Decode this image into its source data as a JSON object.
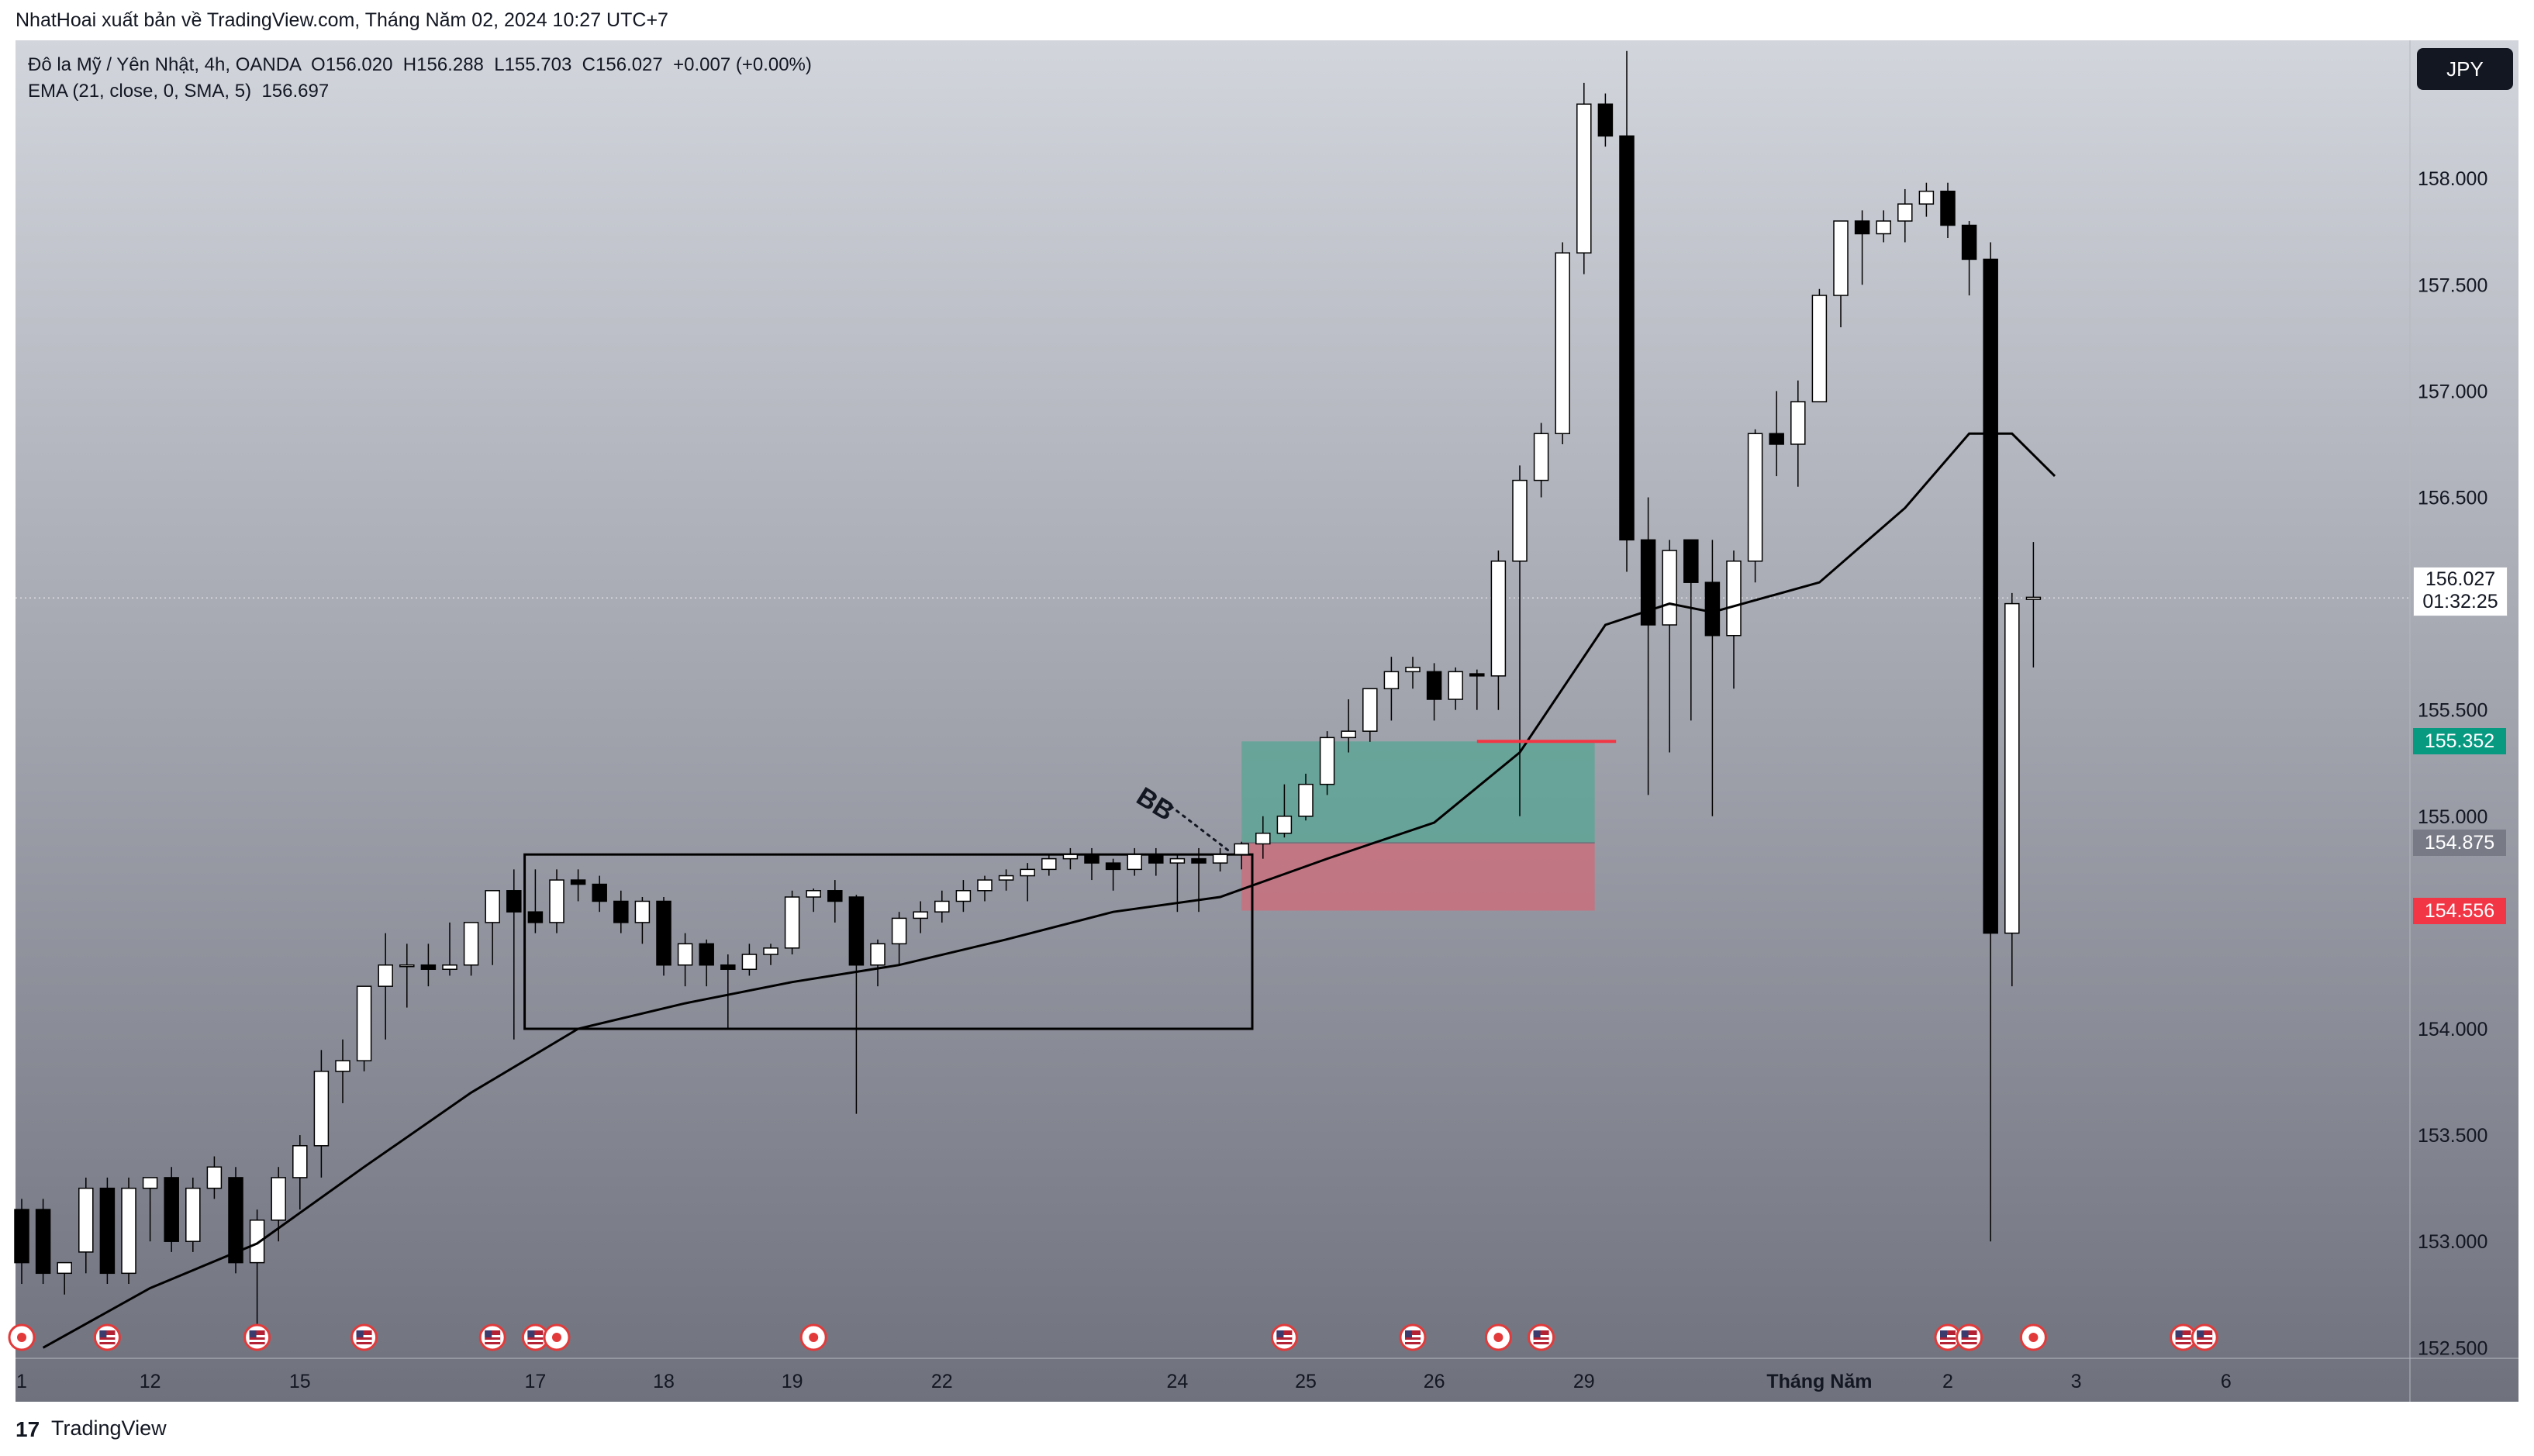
{
  "header": {
    "published_by": "NhatHoai xuất bản về TradingView.com, Tháng Năm 02, 2024 10:27 UTC+7"
  },
  "legend": {
    "symbol_line": "Đô la Mỹ / Yên Nhật, 4h, OANDA  O156.020  H156.288  L155.703  C156.027  +0.007 (+0.00%)",
    "indicator_line": "EMA (21, close, 0, SMA, 5)  156.697"
  },
  "currency_button": "JPY",
  "footer": {
    "brand": "TradingView",
    "brand_mark": "17"
  },
  "colors": {
    "bg_top": "#d2d5dc",
    "bg_bottom": "#6f717d",
    "bull_body": "#ffffff",
    "bear_body": "#000000",
    "ema": "#000000",
    "target_zone": "#5fa596",
    "stop_zone": "#c9707e",
    "last_price_tag": "#2a2e39",
    "target_tag": "#089981",
    "stop_tag": "#f23645",
    "resistance_line": "#f23645"
  },
  "price_labels": {
    "last_price": "156.027",
    "countdown": "01:32:25",
    "target": "155.352",
    "entry": "154.875",
    "stop": "154.556"
  },
  "annotation": {
    "text": "BB"
  },
  "chart_data": {
    "type": "candlestick",
    "symbol": "Đô la Mỹ / Yên Nhật",
    "interval": "4h",
    "source": "OANDA",
    "ohlc": {
      "open": 156.02,
      "high": 156.288,
      "low": 155.703,
      "close": 156.027,
      "change": 0.007,
      "change_pct": 0.0
    },
    "ylim": [
      152.45,
      158.65
    ],
    "y_ticks": [
      {
        "v": 158.0,
        "label": "158.000"
      },
      {
        "v": 157.5,
        "label": "157.500"
      },
      {
        "v": 157.0,
        "label": "157.000"
      },
      {
        "v": 156.5,
        "label": "156.500"
      },
      {
        "v": 155.5,
        "label": "155.500"
      },
      {
        "v": 155.0,
        "label": "155.000"
      },
      {
        "v": 154.0,
        "label": "154.000"
      },
      {
        "v": 153.5,
        "label": "153.500"
      },
      {
        "v": 153.0,
        "label": "153.000"
      },
      {
        "v": 152.5,
        "label": "152.500"
      }
    ],
    "x_ticks": [
      {
        "i": 0,
        "label": "1"
      },
      {
        "i": 6,
        "label": "12"
      },
      {
        "i": 13,
        "label": "15"
      },
      {
        "i": 24,
        "label": "17"
      },
      {
        "i": 30,
        "label": "18"
      },
      {
        "i": 36,
        "label": "19"
      },
      {
        "i": 43,
        "label": "22"
      },
      {
        "i": 54,
        "label": "24"
      },
      {
        "i": 60,
        "label": "25"
      },
      {
        "i": 66,
        "label": "26"
      },
      {
        "i": 73,
        "label": "29"
      },
      {
        "i": 84,
        "label": "Tháng Năm",
        "bold": true
      },
      {
        "i": 90,
        "label": "2"
      },
      {
        "i": 96,
        "label": "3"
      },
      {
        "i": 103,
        "label": "6"
      }
    ],
    "candles": [
      [
        153.15,
        153.2,
        152.8,
        152.9
      ],
      [
        153.15,
        153.2,
        152.8,
        152.85
      ],
      [
        152.85,
        152.9,
        152.75,
        152.9
      ],
      [
        152.95,
        153.3,
        152.85,
        153.25
      ],
      [
        153.25,
        153.3,
        152.8,
        152.85
      ],
      [
        152.85,
        153.3,
        152.8,
        153.25
      ],
      [
        153.25,
        153.3,
        153.0,
        153.3
      ],
      [
        153.3,
        153.35,
        152.95,
        153.0
      ],
      [
        153.0,
        153.3,
        152.95,
        153.25
      ],
      [
        153.25,
        153.4,
        153.2,
        153.35
      ],
      [
        153.3,
        153.35,
        152.85,
        152.9
      ],
      [
        152.9,
        153.15,
        152.6,
        153.1
      ],
      [
        153.1,
        153.35,
        153.0,
        153.3
      ],
      [
        153.3,
        153.5,
        153.15,
        153.45
      ],
      [
        153.45,
        153.9,
        153.3,
        153.8
      ],
      [
        153.8,
        153.95,
        153.65,
        153.85
      ],
      [
        153.85,
        154.2,
        153.8,
        154.2
      ],
      [
        154.2,
        154.45,
        153.95,
        154.3
      ],
      [
        154.3,
        154.4,
        154.1,
        154.3
      ],
      [
        154.3,
        154.4,
        154.2,
        154.28
      ],
      [
        154.28,
        154.5,
        154.25,
        154.3
      ],
      [
        154.3,
        154.5,
        154.25,
        154.5
      ],
      [
        154.5,
        154.65,
        154.3,
        154.65
      ],
      [
        154.65,
        154.75,
        153.95,
        154.55
      ],
      [
        154.55,
        154.75,
        154.45,
        154.5
      ],
      [
        154.5,
        154.75,
        154.45,
        154.7
      ],
      [
        154.7,
        154.75,
        154.6,
        154.68
      ],
      [
        154.68,
        154.72,
        154.55,
        154.6
      ],
      [
        154.6,
        154.65,
        154.45,
        154.5
      ],
      [
        154.5,
        154.62,
        154.4,
        154.6
      ],
      [
        154.6,
        154.62,
        154.25,
        154.3
      ],
      [
        154.3,
        154.45,
        154.2,
        154.4
      ],
      [
        154.4,
        154.42,
        154.2,
        154.3
      ],
      [
        154.3,
        154.35,
        154.0,
        154.28
      ],
      [
        154.28,
        154.4,
        154.25,
        154.35
      ],
      [
        154.35,
        154.4,
        154.3,
        154.38
      ],
      [
        154.38,
        154.65,
        154.35,
        154.62
      ],
      [
        154.62,
        154.66,
        154.55,
        154.65
      ],
      [
        154.65,
        154.7,
        154.5,
        154.6
      ],
      [
        154.62,
        154.63,
        153.6,
        154.3
      ],
      [
        154.3,
        154.42,
        154.2,
        154.4
      ],
      [
        154.4,
        154.55,
        154.3,
        154.52
      ],
      [
        154.52,
        154.6,
        154.45,
        154.55
      ],
      [
        154.55,
        154.65,
        154.5,
        154.6
      ],
      [
        154.6,
        154.7,
        154.55,
        154.65
      ],
      [
        154.65,
        154.72,
        154.6,
        154.7
      ],
      [
        154.7,
        154.75,
        154.65,
        154.72
      ],
      [
        154.72,
        154.78,
        154.6,
        154.75
      ],
      [
        154.75,
        154.82,
        154.72,
        154.8
      ],
      [
        154.8,
        154.85,
        154.75,
        154.82
      ],
      [
        154.82,
        154.85,
        154.7,
        154.78
      ],
      [
        154.78,
        154.8,
        154.65,
        154.75
      ],
      [
        154.75,
        154.85,
        154.72,
        154.82
      ],
      [
        154.82,
        154.85,
        154.72,
        154.78
      ],
      [
        154.78,
        154.82,
        154.55,
        154.8
      ],
      [
        154.8,
        154.85,
        154.55,
        154.78
      ],
      [
        154.78,
        154.85,
        154.74,
        154.82
      ],
      [
        154.82,
        154.88,
        154.75,
        154.87
      ],
      [
        154.87,
        155.0,
        154.8,
        154.92
      ],
      [
        154.92,
        155.15,
        154.9,
        155.0
      ],
      [
        155.0,
        155.2,
        154.98,
        155.15
      ],
      [
        155.15,
        155.4,
        155.1,
        155.37
      ],
      [
        155.37,
        155.55,
        155.3,
        155.4
      ],
      [
        155.4,
        155.6,
        155.35,
        155.6
      ],
      [
        155.6,
        155.75,
        155.45,
        155.68
      ],
      [
        155.68,
        155.75,
        155.6,
        155.7
      ],
      [
        155.68,
        155.72,
        155.45,
        155.55
      ],
      [
        155.55,
        155.7,
        155.5,
        155.68
      ],
      [
        155.67,
        155.69,
        155.5,
        155.66
      ],
      [
        155.66,
        156.25,
        155.5,
        156.2
      ],
      [
        156.2,
        156.65,
        155.0,
        156.58
      ],
      [
        156.58,
        156.85,
        156.5,
        156.8
      ],
      [
        156.8,
        157.7,
        156.75,
        157.65
      ],
      [
        157.65,
        158.45,
        157.55,
        158.35
      ],
      [
        158.35,
        158.4,
        158.15,
        158.2
      ],
      [
        158.2,
        158.6,
        156.15,
        156.3
      ],
      [
        156.3,
        156.5,
        155.1,
        155.9
      ],
      [
        155.9,
        156.3,
        155.3,
        156.25
      ],
      [
        156.3,
        156.3,
        155.45,
        156.1
      ],
      [
        156.1,
        156.3,
        155.0,
        155.85
      ],
      [
        155.85,
        156.25,
        155.6,
        156.2
      ],
      [
        156.2,
        156.82,
        156.1,
        156.8
      ],
      [
        156.8,
        157.0,
        156.6,
        156.75
      ],
      [
        156.75,
        157.05,
        156.55,
        156.95
      ],
      [
        156.95,
        157.48,
        156.95,
        157.45
      ],
      [
        157.45,
        157.8,
        157.3,
        157.8
      ],
      [
        157.8,
        157.85,
        157.5,
        157.74
      ],
      [
        157.74,
        157.85,
        157.7,
        157.8
      ],
      [
        157.8,
        157.95,
        157.7,
        157.88
      ],
      [
        157.88,
        157.98,
        157.82,
        157.94
      ],
      [
        157.94,
        157.98,
        157.72,
        157.78
      ],
      [
        157.78,
        157.8,
        157.45,
        157.62
      ],
      [
        157.62,
        157.7,
        153.0,
        154.45
      ],
      [
        154.45,
        156.05,
        154.2,
        156.0
      ],
      [
        156.02,
        156.29,
        155.7,
        156.03
      ]
    ],
    "ema_21": [
      [
        1,
        152.5
      ],
      [
        6,
        152.78
      ],
      [
        11,
        152.99
      ],
      [
        16,
        153.35
      ],
      [
        21,
        153.7
      ],
      [
        26,
        154.0
      ],
      [
        31,
        154.12
      ],
      [
        36,
        154.22
      ],
      [
        41,
        154.3
      ],
      [
        46,
        154.42
      ],
      [
        51,
        154.55
      ],
      [
        56,
        154.62
      ],
      [
        61,
        154.8
      ],
      [
        66,
        154.97
      ],
      [
        70,
        155.3
      ],
      [
        74,
        155.9
      ],
      [
        77,
        156.0
      ],
      [
        79,
        155.96
      ],
      [
        84,
        156.1
      ],
      [
        88,
        156.45
      ],
      [
        91,
        156.8
      ],
      [
        93,
        156.8
      ],
      [
        95,
        156.6
      ]
    ],
    "consolidation_box": {
      "i0": 23.5,
      "i1": 57.5,
      "price_top": 154.82,
      "price_bottom": 154.0
    },
    "position": {
      "i0": 57,
      "i1": 73.5,
      "target": 155.352,
      "entry": 154.875,
      "stop": 154.556
    },
    "resistance": {
      "i0": 68,
      "i1": 74.5,
      "price": 155.352
    },
    "last_price_line": 156.027,
    "events": [
      {
        "i": 0,
        "kind": "red"
      },
      {
        "i": 4,
        "kind": "us"
      },
      {
        "i": 11,
        "kind": "us"
      },
      {
        "i": 16,
        "kind": "us"
      },
      {
        "i": 22,
        "kind": "us"
      },
      {
        "i": 24,
        "kind": "us"
      },
      {
        "i": 25,
        "kind": "red"
      },
      {
        "i": 37,
        "kind": "red"
      },
      {
        "i": 59,
        "kind": "us"
      },
      {
        "i": 65,
        "kind": "us"
      },
      {
        "i": 69,
        "kind": "red"
      },
      {
        "i": 71,
        "kind": "us"
      },
      {
        "i": 90,
        "kind": "us"
      },
      {
        "i": 91,
        "kind": "us"
      },
      {
        "i": 94,
        "kind": "red"
      },
      {
        "i": 101,
        "kind": "us"
      },
      {
        "i": 102,
        "kind": "us"
      }
    ]
  }
}
